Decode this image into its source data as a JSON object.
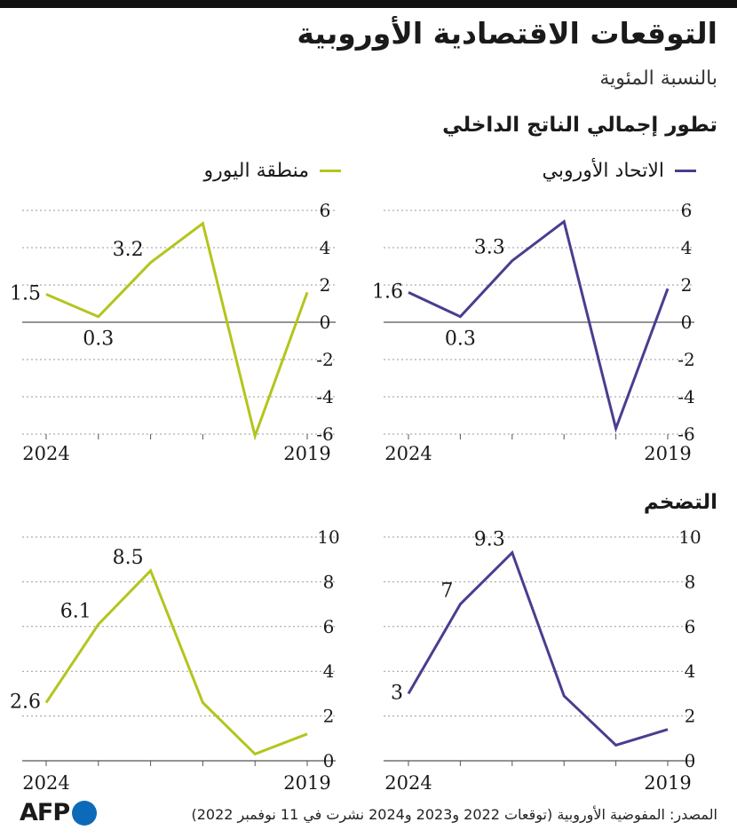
{
  "header": {
    "title": "التوقعات الاقتصادية الأوروبية",
    "subtitle": "بالنسبة المئوية"
  },
  "sections": {
    "gdp": "تطور إجمالي الناتج الداخلي",
    "inflation": "التضخم"
  },
  "legend": {
    "eu": "الاتحاد الأوروبي",
    "eurozone": "منطقة اليورو"
  },
  "colors": {
    "eu": "#4a3d8f",
    "eurozone": "#b5c41c",
    "grid": "#999999",
    "text": "#1a1a1a"
  },
  "footer": {
    "source": "المصدر: المفوضية الأوروبية (توقعات 2022 و2023 و2024 نشرت في 11 نوفمبر 2022)",
    "logo": "AFP"
  },
  "chart_data": [
    {
      "type": "line",
      "id": "gdp-eurozone",
      "series_name": "منطقة اليورو",
      "x": [
        2019,
        2020,
        2021,
        2022,
        2023,
        2024
      ],
      "x_tick_labels": [
        "2019",
        "2024"
      ],
      "values": [
        1.6,
        -6.1,
        5.3,
        3.2,
        0.3,
        1.5
      ],
      "data_labels": [
        {
          "x": 2022,
          "text": "3.2"
        },
        {
          "x": 2023,
          "text": "0.3"
        },
        {
          "x": 2024,
          "text": "1.5"
        }
      ],
      "ylim": [
        -6,
        6
      ],
      "yticks": [
        6,
        4,
        2,
        0,
        -2,
        -4,
        -6
      ],
      "x_reversed": true,
      "y_axis_side": "right",
      "grid": true,
      "color": "#b5c41c"
    },
    {
      "type": "line",
      "id": "gdp-eu",
      "series_name": "الاتحاد الأوروبي",
      "x": [
        2019,
        2020,
        2021,
        2022,
        2023,
        2024
      ],
      "x_tick_labels": [
        "2019",
        "2024"
      ],
      "values": [
        1.8,
        -5.7,
        5.4,
        3.3,
        0.3,
        1.6
      ],
      "data_labels": [
        {
          "x": 2022,
          "text": "3.3"
        },
        {
          "x": 2023,
          "text": "0.3"
        },
        {
          "x": 2024,
          "text": "1.6"
        }
      ],
      "ylim": [
        -6,
        6
      ],
      "yticks": [
        6,
        4,
        2,
        0,
        -2,
        -4,
        -6
      ],
      "x_reversed": true,
      "y_axis_side": "right",
      "grid": true,
      "color": "#4a3d8f"
    },
    {
      "type": "line",
      "id": "inflation-eurozone",
      "series_name": "منطقة اليورو",
      "x": [
        2019,
        2020,
        2021,
        2022,
        2023,
        2024
      ],
      "x_tick_labels": [
        "2019",
        "2024"
      ],
      "values": [
        1.2,
        0.3,
        2.6,
        8.5,
        6.1,
        2.6
      ],
      "data_labels": [
        {
          "x": 2022,
          "text": "8.5"
        },
        {
          "x": 2023,
          "text": "6.1"
        },
        {
          "x": 2024,
          "text": "2.6"
        }
      ],
      "ylim": [
        0,
        10
      ],
      "yticks": [
        10,
        8,
        6,
        4,
        2,
        0
      ],
      "x_reversed": true,
      "y_axis_side": "right",
      "grid": true,
      "color": "#b5c41c"
    },
    {
      "type": "line",
      "id": "inflation-eu",
      "series_name": "الاتحاد الأوروبي",
      "x": [
        2019,
        2020,
        2021,
        2022,
        2023,
        2024
      ],
      "x_tick_labels": [
        "2019",
        "2024"
      ],
      "values": [
        1.4,
        0.7,
        2.9,
        9.3,
        7.0,
        3.0
      ],
      "data_labels": [
        {
          "x": 2022,
          "text": "9.3"
        },
        {
          "x": 2023,
          "text": "7"
        },
        {
          "x": 2024,
          "text": "3"
        }
      ],
      "ylim": [
        0,
        10
      ],
      "yticks": [
        10,
        8,
        6,
        4,
        2,
        0
      ],
      "x_reversed": true,
      "y_axis_side": "right",
      "grid": true,
      "color": "#4a3d8f"
    }
  ]
}
